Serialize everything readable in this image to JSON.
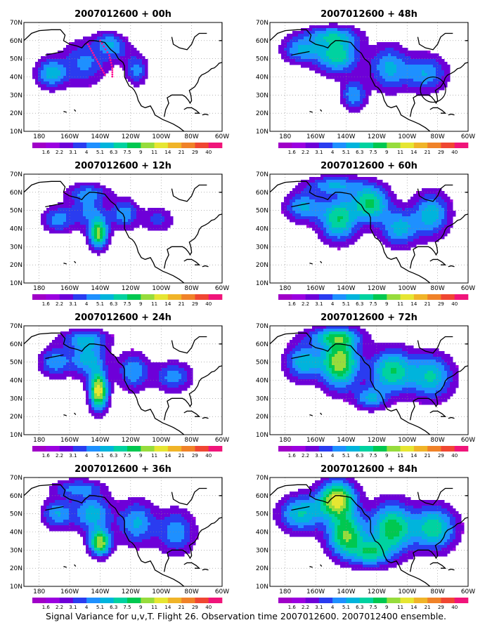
{
  "caption": "Signal Variance for u,v,T. Flight 26. Observation time 2007012600. 2007012400 ensemble.",
  "colors": {
    "levels": [
      "#9b00e0",
      "#6e00d8",
      "#2a3cf0",
      "#1e90ff",
      "#00b4dc",
      "#00d2a0",
      "#00c850",
      "#96dc3c",
      "#e6e632",
      "#f0b428",
      "#f08228",
      "#f04632",
      "#f0147a"
    ],
    "land_outline": "#000000",
    "ocean": "#ffffff",
    "grid": "#888888",
    "obs_marker": "#ff1493"
  },
  "chart_data": [
    {
      "type": "heatmap",
      "title": "2007012600 + 00h",
      "lead_hours": 0,
      "axes": {
        "lon_range": [
          170,
          300
        ],
        "lat_range": [
          10,
          70
        ],
        "yticks": [
          "10N",
          "20N",
          "30N",
          "40N",
          "50N",
          "60N",
          "70N"
        ],
        "xticks": [
          "180",
          "160W",
          "140W",
          "120W",
          "100W",
          "80W",
          "60W"
        ],
        "grid": true
      },
      "colorbar_levels": [
        "1.6",
        "2.2",
        "3.1",
        "4",
        "5.1",
        "6.3",
        "7.5",
        "9",
        "11",
        "14",
        "21",
        "29",
        "40"
      ],
      "features": {
        "dropsondes": true
      }
    },
    {
      "type": "heatmap",
      "title": "2007012600 + 12h",
      "lead_hours": 12,
      "axes": {
        "lon_range": [
          170,
          300
        ],
        "lat_range": [
          10,
          70
        ],
        "yticks": [
          "10N",
          "20N",
          "30N",
          "40N",
          "50N",
          "60N",
          "70N"
        ],
        "xticks": [
          "180",
          "160W",
          "140W",
          "120W",
          "100W",
          "80W",
          "60W"
        ],
        "grid": true
      },
      "colorbar_levels": [
        "1.6",
        "2.2",
        "3.1",
        "4",
        "5.1",
        "6.3",
        "7.5",
        "9",
        "11",
        "14",
        "21",
        "29",
        "40"
      ]
    },
    {
      "type": "heatmap",
      "title": "2007012600 + 24h",
      "lead_hours": 24,
      "axes": {
        "lon_range": [
          170,
          300
        ],
        "lat_range": [
          10,
          70
        ],
        "yticks": [
          "10N",
          "20N",
          "30N",
          "40N",
          "50N",
          "60N",
          "70N"
        ],
        "xticks": [
          "180",
          "160W",
          "140W",
          "120W",
          "100W",
          "80W",
          "60W"
        ],
        "grid": true
      },
      "colorbar_levels": [
        "1.6",
        "2.2",
        "3.1",
        "4",
        "5.1",
        "6.3",
        "7.5",
        "9",
        "11",
        "14",
        "21",
        "29",
        "40"
      ]
    },
    {
      "type": "heatmap",
      "title": "2007012600 + 36h",
      "lead_hours": 36,
      "axes": {
        "lon_range": [
          170,
          300
        ],
        "lat_range": [
          10,
          70
        ],
        "yticks": [
          "10N",
          "20N",
          "30N",
          "40N",
          "50N",
          "60N",
          "70N"
        ],
        "xticks": [
          "180",
          "160W",
          "140W",
          "120W",
          "100W",
          "80W",
          "60W"
        ],
        "grid": true
      },
      "colorbar_levels": [
        "1.6",
        "2.2",
        "3.1",
        "4",
        "5.1",
        "6.3",
        "7.5",
        "9",
        "11",
        "14",
        "21",
        "29",
        "40"
      ]
    },
    {
      "type": "heatmap",
      "title": "2007012600 + 48h",
      "lead_hours": 48,
      "axes": {
        "lon_range": [
          170,
          300
        ],
        "lat_range": [
          10,
          70
        ],
        "yticks": [
          "10N",
          "20N",
          "30N",
          "40N",
          "50N",
          "60N",
          "70N"
        ],
        "xticks": [
          "180",
          "160W",
          "140W",
          "120W",
          "100W",
          "80W",
          "60W"
        ],
        "grid": true
      },
      "colorbar_levels": [
        "1.6",
        "2.2",
        "3.1",
        "4",
        "5.1",
        "6.3",
        "7.5",
        "9",
        "11",
        "14",
        "21",
        "29",
        "40"
      ],
      "features": {
        "verification_circle": true
      }
    },
    {
      "type": "heatmap",
      "title": "2007012600 + 60h",
      "lead_hours": 60,
      "axes": {
        "lon_range": [
          170,
          300
        ],
        "lat_range": [
          10,
          70
        ],
        "yticks": [
          "10N",
          "20N",
          "30N",
          "40N",
          "50N",
          "60N",
          "70N"
        ],
        "xticks": [
          "180",
          "160W",
          "140W",
          "120W",
          "100W",
          "80W",
          "60W"
        ],
        "grid": true
      },
      "colorbar_levels": [
        "1.6",
        "2.2",
        "3.1",
        "4",
        "5.1",
        "6.3",
        "7.5",
        "9",
        "11",
        "14",
        "21",
        "29",
        "40"
      ]
    },
    {
      "type": "heatmap",
      "title": "2007012600 + 72h",
      "lead_hours": 72,
      "axes": {
        "lon_range": [
          170,
          300
        ],
        "lat_range": [
          10,
          70
        ],
        "yticks": [
          "10N",
          "20N",
          "30N",
          "40N",
          "50N",
          "60N",
          "70N"
        ],
        "xticks": [
          "180",
          "160W",
          "140W",
          "120W",
          "100W",
          "80W",
          "60W"
        ],
        "grid": true
      },
      "colorbar_levels": [
        "1.6",
        "2.2",
        "3.1",
        "4",
        "5.1",
        "6.3",
        "7.5",
        "9",
        "11",
        "14",
        "21",
        "29",
        "40"
      ]
    },
    {
      "type": "heatmap",
      "title": "2007012600 + 84h",
      "lead_hours": 84,
      "axes": {
        "lon_range": [
          170,
          300
        ],
        "lat_range": [
          10,
          70
        ],
        "yticks": [
          "10N",
          "20N",
          "30N",
          "40N",
          "50N",
          "60N",
          "70N"
        ],
        "xticks": [
          "180",
          "160W",
          "140W",
          "120W",
          "100W",
          "80W",
          "60W"
        ],
        "grid": true
      },
      "colorbar_levels": [
        "1.6",
        "2.2",
        "3.1",
        "4",
        "5.1",
        "6.3",
        "7.5",
        "9",
        "11",
        "14",
        "21",
        "29",
        "40"
      ]
    }
  ]
}
